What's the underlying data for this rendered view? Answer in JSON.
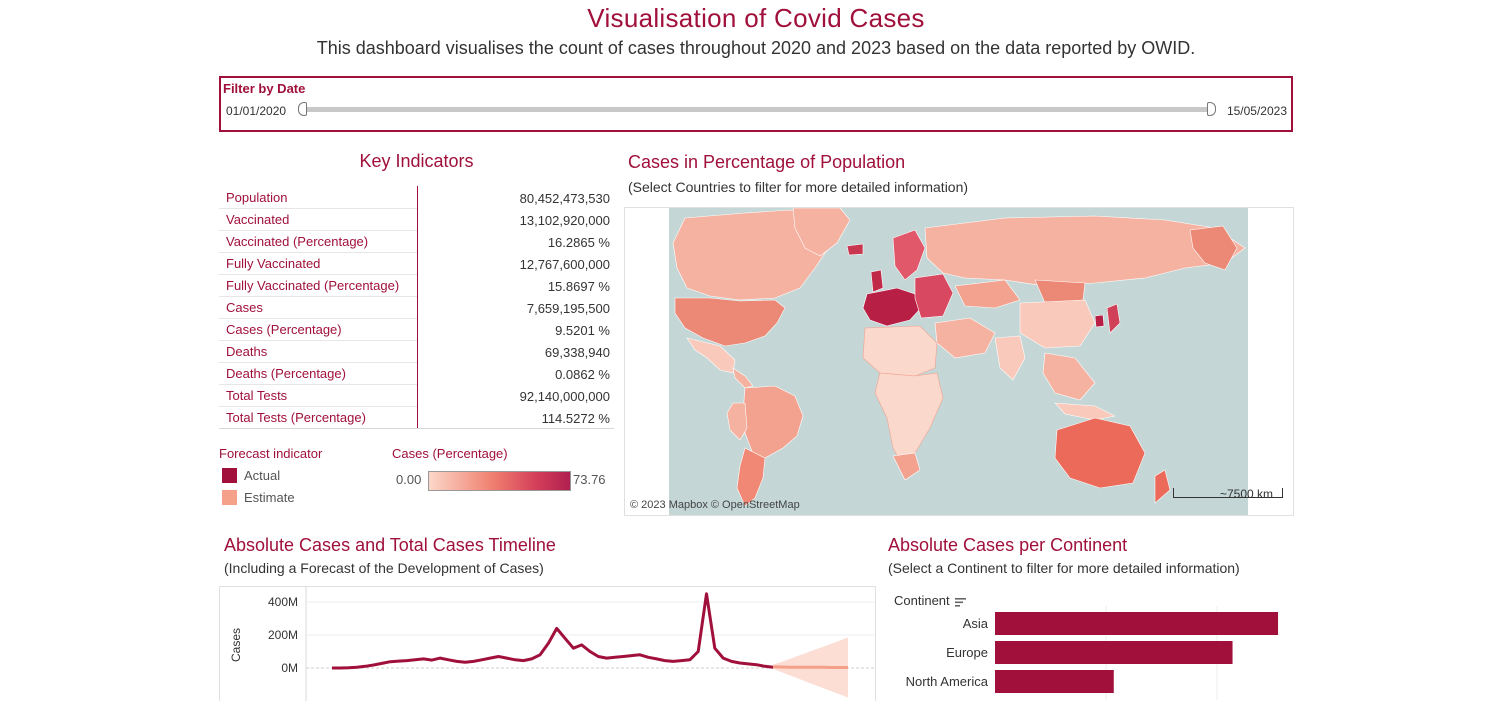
{
  "header": {
    "title": "Visualisation of Covid Cases",
    "subtitle": "This dashboard visualises the count of cases throughout 2020 and 2023 based on the data reported by OWID."
  },
  "filter": {
    "label": "Filter by Date",
    "start": "01/01/2020",
    "end": "15/05/2023"
  },
  "key_indicators": {
    "title": "Key Indicators",
    "rows": [
      {
        "label": "Population",
        "value": "80,452,473,530"
      },
      {
        "label": "Vaccinated",
        "value": "13,102,920,000"
      },
      {
        "label": "Vaccinated (Percentage)",
        "value": "16.2865 %"
      },
      {
        "label": "Fully Vaccinated",
        "value": "12,767,600,000"
      },
      {
        "label": "Fully Vaccinated (Percentage)",
        "value": "15.8697 %"
      },
      {
        "label": "Cases",
        "value": "7,659,195,500"
      },
      {
        "label": "Cases (Percentage)",
        "value": "9.5201 %"
      },
      {
        "label": "Deaths",
        "value": "69,338,940"
      },
      {
        "label": "Deaths (Percentage)",
        "value": "0.0862 %"
      },
      {
        "label": "Total Tests",
        "value": "92,140,000,000"
      },
      {
        "label": "Total Tests (Percentage)",
        "value": "114.5272 %"
      }
    ]
  },
  "forecast_legend": {
    "title": "Forecast indicator",
    "actual": "Actual",
    "estimate": "Estimate",
    "actual_color": "#a0103b",
    "estimate_color": "#f5a088"
  },
  "cases_legend": {
    "title": "Cases (Percentage)",
    "min": "0.00",
    "max": "73.76"
  },
  "map": {
    "title": "Cases in Percentage of Population",
    "subtitle": "(Select Countries to filter for more detailed information)",
    "attribution": "© 2023 Mapbox  © OpenStreetMap",
    "scale": "~7500 km",
    "ocean_color": "#c4d6d6"
  },
  "timeline": {
    "title": "Absolute Cases and Total Cases Timeline",
    "subtitle": "(Including a Forecast of the Development of Cases)",
    "ylabel": "Cases",
    "ticks": [
      "400M",
      "200M",
      "0M"
    ]
  },
  "continents": {
    "title": "Absolute Cases per Continent",
    "subtitle": "(Select a Continent to filter for more detailed information)",
    "header": "Continent",
    "sort_icon": "sort-icon"
  },
  "chart_data": [
    {
      "type": "line",
      "ylabel": "Cases",
      "ylim": [
        -80,
        460
      ],
      "yticks": [
        0,
        200,
        400
      ],
      "series": [
        {
          "name": "Actual",
          "values": [
            0,
            0,
            2,
            5,
            10,
            18,
            28,
            38,
            42,
            45,
            50,
            55,
            48,
            60,
            50,
            40,
            35,
            40,
            50,
            60,
            70,
            60,
            50,
            45,
            55,
            80,
            150,
            240,
            180,
            120,
            140,
            100,
            70,
            60,
            65,
            70,
            75,
            80,
            65,
            55,
            45,
            40,
            45,
            50,
            100,
            450,
            120,
            60,
            40,
            30,
            25,
            20,
            10,
            5
          ]
        },
        {
          "name": "Estimate",
          "values": [
            8,
            6,
            5,
            5,
            4,
            4,
            4,
            3,
            3,
            3
          ]
        }
      ]
    },
    {
      "type": "bar",
      "orientation": "horizontal",
      "categories": [
        "Asia",
        "Europe",
        "North America"
      ],
      "values": [
        2.55,
        2.14,
        1.07
      ],
      "color": "#a0103b"
    }
  ]
}
